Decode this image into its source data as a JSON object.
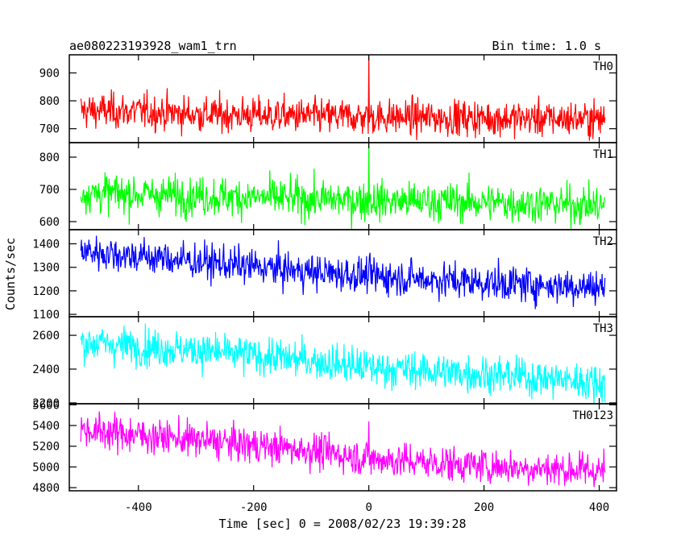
{
  "header": {
    "title": "ae080223193928_wam1_trn",
    "bin_time": "Bin time: 1.0 s"
  },
  "axes": {
    "xlabel": "Time [sec] 0 = 2008/02/23 19:39:28",
    "ylabel": "Counts/sec"
  },
  "chart_data": {
    "type": "line",
    "title": "ae080223193928_wam1_trn",
    "subtitle": "Bin time: 1.0 s",
    "xlabel": "Time [sec] 0 = 2008/02/23 19:39:28",
    "ylabel": "Counts/sec",
    "xlim": [
      -520,
      430
    ],
    "x_ticks": [
      -400,
      -200,
      0,
      200,
      400
    ],
    "x_data_range": [
      -500,
      410
    ],
    "bin_time_s": 1.0,
    "grid": false,
    "legend": "none",
    "panels": [
      {
        "name": "TH0",
        "color": "#ff0000",
        "ylim": [
          650,
          965
        ],
        "y_ticks": [
          700,
          800,
          900
        ],
        "trend": [
          [
            -500,
            765
          ],
          [
            -400,
            762
          ],
          [
            -300,
            752
          ],
          [
            -100,
            745
          ],
          [
            0,
            742
          ],
          [
            200,
            738
          ],
          [
            410,
            735
          ]
        ],
        "noise_sd": 32,
        "peak": {
          "x": 0,
          "y": 965
        }
      },
      {
        "name": "TH1",
        "color": "#00ff00",
        "ylim": [
          575,
          845
        ],
        "y_ticks": [
          600,
          700,
          800
        ],
        "trend": [
          [
            -500,
            690
          ],
          [
            -300,
            680
          ],
          [
            -100,
            670
          ],
          [
            0,
            665
          ],
          [
            200,
            660
          ],
          [
            410,
            650
          ]
        ],
        "noise_sd": 30,
        "peak": {
          "x": 0,
          "y": 845
        }
      },
      {
        "name": "TH2",
        "color": "#0000ff",
        "ylim": [
          1090,
          1460
        ],
        "y_ticks": [
          1100,
          1200,
          1300,
          1400
        ],
        "trend": [
          [
            -500,
            1370
          ],
          [
            -300,
            1325
          ],
          [
            -100,
            1280
          ],
          [
            0,
            1265
          ],
          [
            200,
            1235
          ],
          [
            410,
            1215
          ]
        ],
        "noise_sd": 38,
        "peak": null
      },
      {
        "name": "TH3",
        "color": "#00ffff",
        "ylim": [
          2195,
          2710
        ],
        "y_ticks": [
          2200,
          2400,
          2600
        ],
        "trend": [
          [
            -500,
            2560
          ],
          [
            -300,
            2510
          ],
          [
            -100,
            2450
          ],
          [
            0,
            2410
          ],
          [
            200,
            2370
          ],
          [
            410,
            2320
          ]
        ],
        "noise_sd": 55,
        "peak": null
      },
      {
        "name": "TH0123",
        "color": "#ff00ff",
        "ylim": [
          4770,
          5610
        ],
        "y_ticks": [
          4800,
          5000,
          5200,
          5400,
          5600
        ],
        "trend": [
          [
            -500,
            5360
          ],
          [
            -300,
            5260
          ],
          [
            -100,
            5160
          ],
          [
            0,
            5080
          ],
          [
            200,
            5010
          ],
          [
            410,
            4960
          ]
        ],
        "noise_sd": 85,
        "peak": {
          "x": 0,
          "y": 5440
        }
      }
    ]
  }
}
